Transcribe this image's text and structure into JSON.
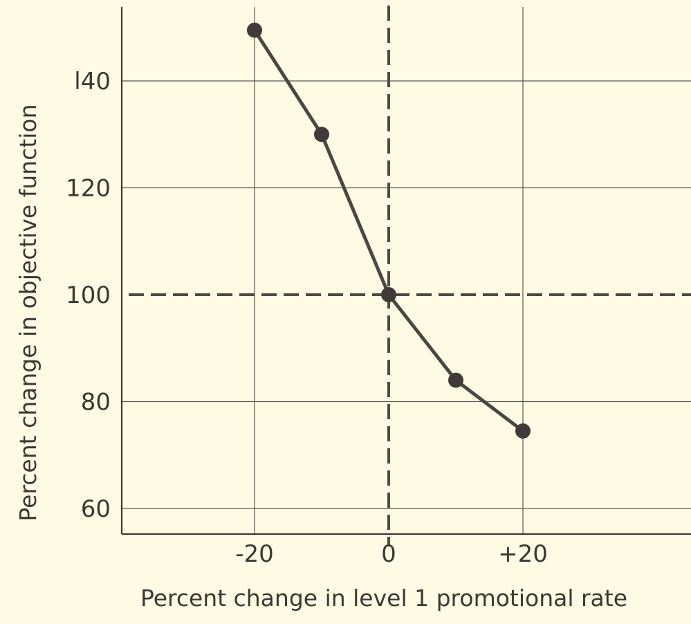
{
  "chart_data": {
    "type": "line",
    "xlabel": "Percent change in level 1 promotional rate",
    "ylabel": "Percent change in objective function",
    "x_ticks": [
      {
        "value": -20,
        "label": "-20"
      },
      {
        "value": 0,
        "label": "0"
      },
      {
        "value": 20,
        "label": "+20"
      }
    ],
    "y_ticks": [
      {
        "value": 60,
        "label": "60"
      },
      {
        "value": 80,
        "label": "80"
      },
      {
        "value": 100,
        "label": "100"
      },
      {
        "value": 120,
        "label": "120"
      },
      {
        "value": 140,
        "label": "l40"
      }
    ],
    "xlim": [
      -40,
      40
    ],
    "ylim": [
      58,
      154
    ],
    "grid": true,
    "reference_lines": [
      {
        "axis": "x",
        "value": 0,
        "style": "dashed"
      },
      {
        "axis": "y",
        "value": 100,
        "style": "dashed"
      }
    ],
    "series": [
      {
        "x": [
          -20,
          -10,
          0,
          10,
          20
        ],
        "y": [
          149.5,
          130,
          100,
          84,
          74.5
        ]
      }
    ]
  }
}
